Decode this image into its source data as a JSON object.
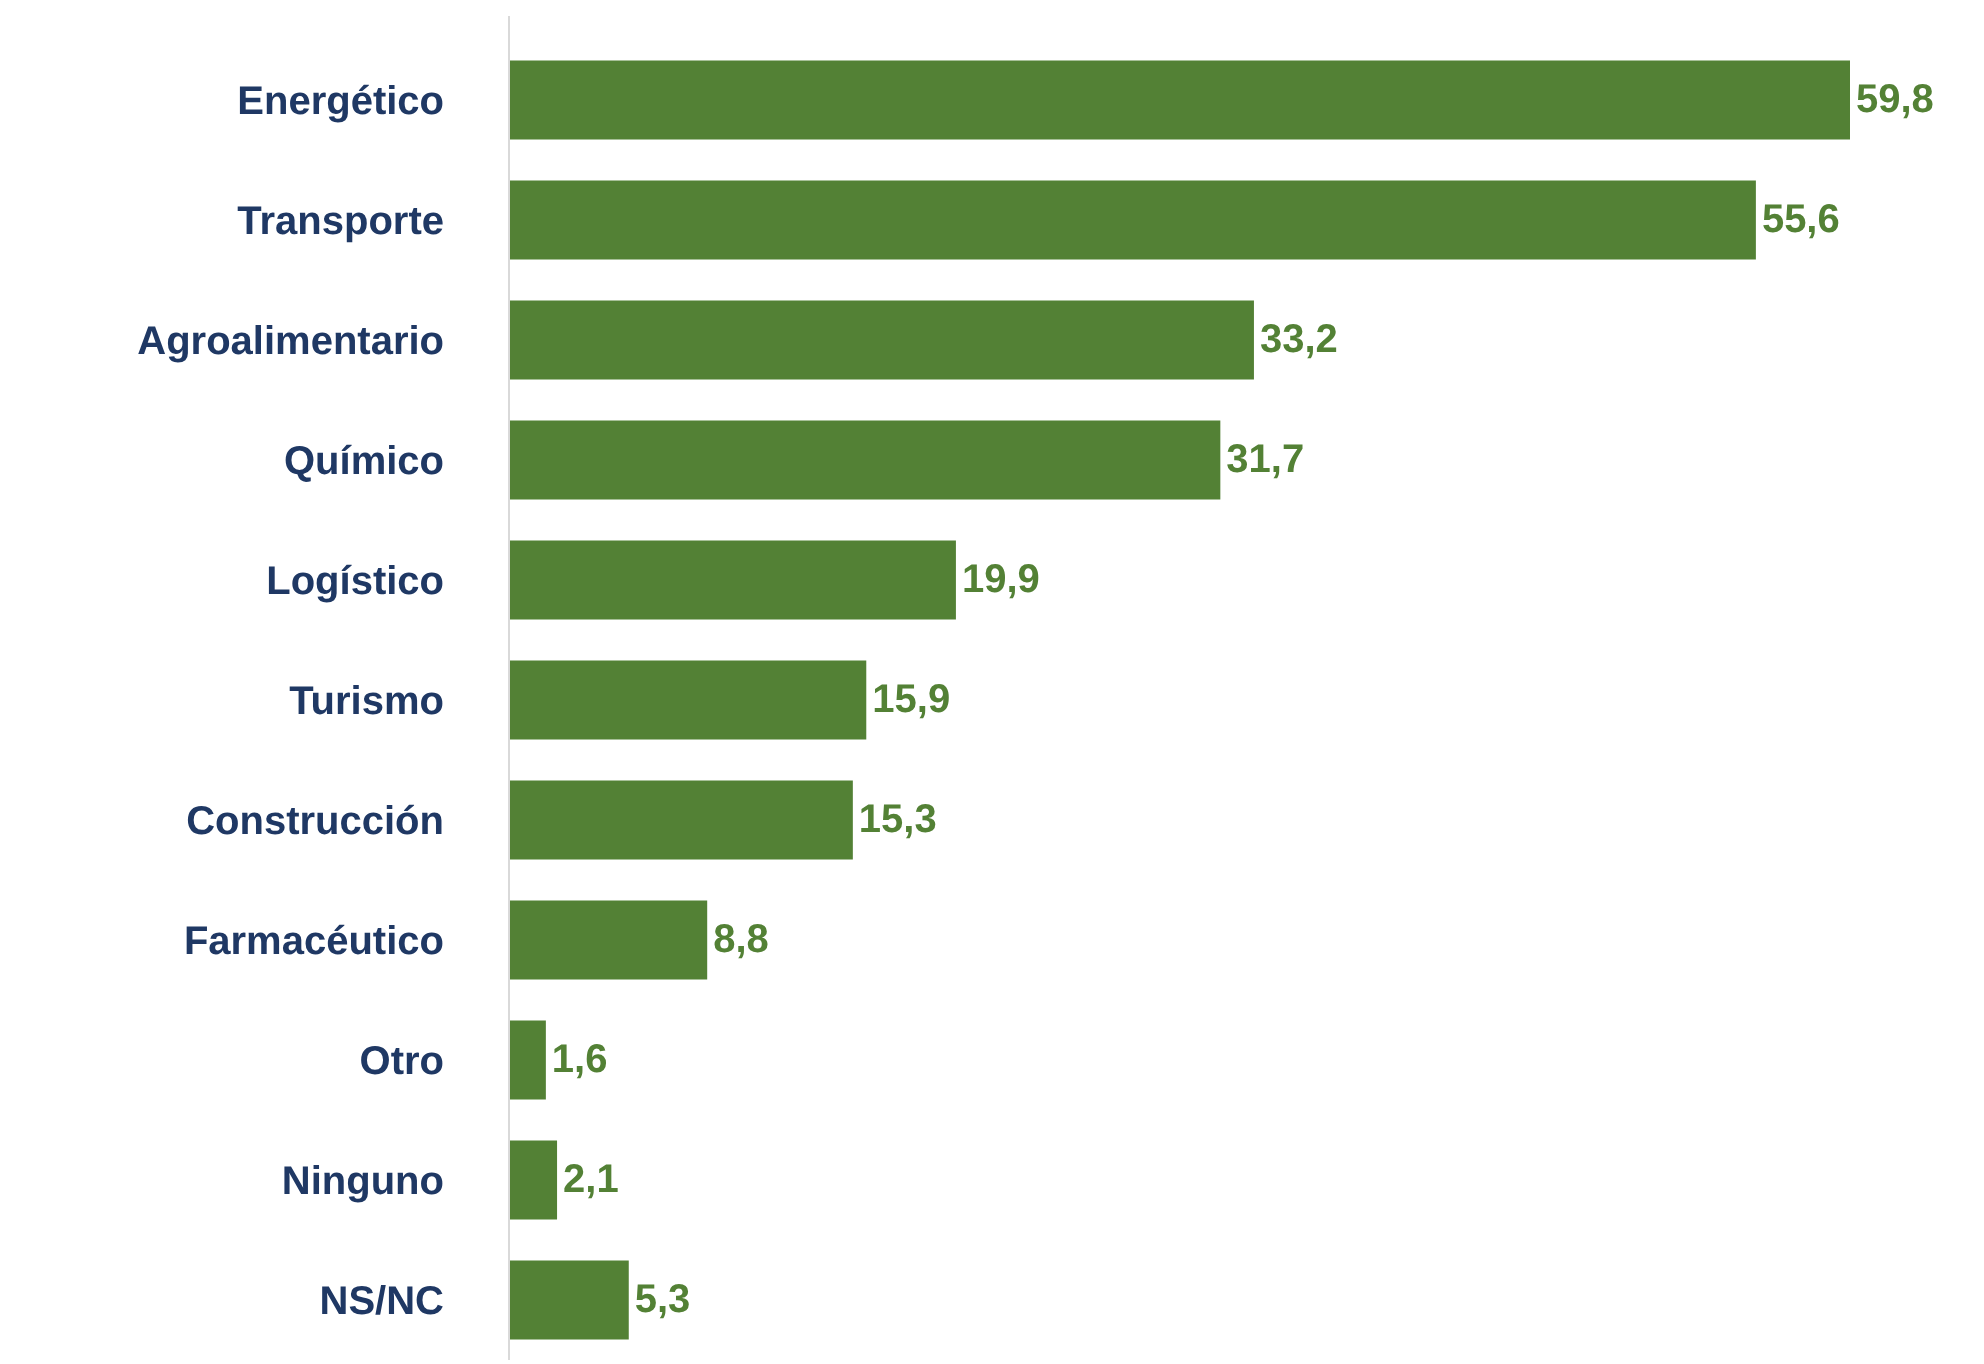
{
  "chart_data": {
    "type": "bar",
    "orientation": "horizontal",
    "tick_labels": "y",
    "color": "#538135",
    "categories": [
      "Energético",
      "Transporte",
      "Agroalimentario",
      "Químico",
      "Logístico",
      "Turismo",
      "Construcción",
      "Farmacéutico",
      "Otro",
      "Ninguno",
      "NS/NC"
    ],
    "values": [
      59.8,
      55.6,
      33.2,
      31.7,
      19.9,
      15.9,
      15.3,
      8.8,
      1.6,
      2.1,
      5.3
    ],
    "value_labels": [
      "59,8",
      "55,6",
      "33,2",
      "31,7",
      "19,9",
      "15,9",
      "15,3",
      "8,8",
      "1,6",
      "2,1",
      "5,3"
    ]
  }
}
